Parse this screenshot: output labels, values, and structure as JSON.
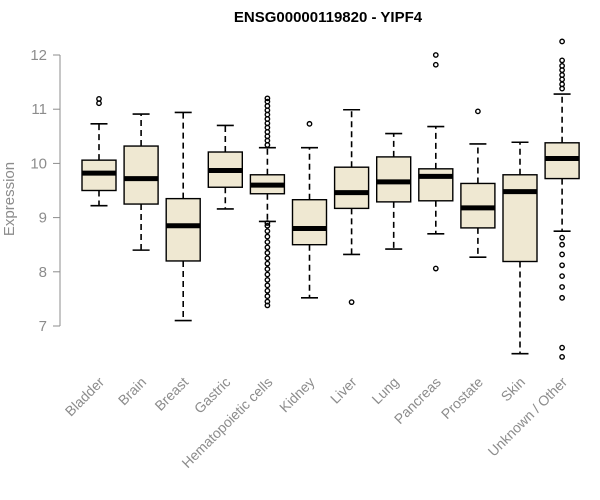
{
  "chart_data": {
    "type": "boxplot",
    "title": "ENSG00000119820 - YIPF4",
    "xlabel": "",
    "ylabel": "Expression",
    "ylim": [
      6.6,
      12.35
    ],
    "yticks": [
      7,
      8,
      9,
      10,
      11,
      12
    ],
    "grid": false,
    "colors": {
      "box_fill": "#efe8d2",
      "box_stroke": "#000000",
      "axis": "#8c8c8c",
      "text": "#8c8c8c"
    },
    "categories": [
      "Bladder",
      "Brain",
      "Breast",
      "Gastric",
      "Hematopoietic cells",
      "Kidney",
      "Liver",
      "Lung",
      "Pancreas",
      "Prostate",
      "Skin",
      "Unknown / Other"
    ],
    "boxes": [
      {
        "category": "Bladder",
        "whisker_low": 9.22,
        "q1": 9.5,
        "median": 9.82,
        "q3": 10.06,
        "whisker_high": 10.73,
        "outliers": [
          11.11,
          11.19
        ]
      },
      {
        "category": "Brain",
        "whisker_low": 8.4,
        "q1": 9.25,
        "median": 9.72,
        "q3": 10.32,
        "whisker_high": 10.91,
        "outliers": []
      },
      {
        "category": "Breast",
        "whisker_low": 7.1,
        "q1": 8.2,
        "median": 8.85,
        "q3": 9.35,
        "whisker_high": 10.94,
        "outliers": []
      },
      {
        "category": "Gastric",
        "whisker_low": 9.16,
        "q1": 9.56,
        "median": 9.87,
        "q3": 10.21,
        "whisker_high": 10.7,
        "outliers": []
      },
      {
        "category": "Hematopoietic cells",
        "whisker_low": 8.93,
        "q1": 9.44,
        "median": 9.6,
        "q3": 9.79,
        "whisker_high": 10.29,
        "outliers": [
          7.38,
          7.45,
          7.55,
          7.65,
          7.75,
          7.85,
          7.95,
          8.05,
          8.15,
          8.25,
          8.35,
          8.45,
          8.55,
          8.65,
          8.75,
          8.85,
          8.9,
          10.34,
          10.42,
          10.5,
          10.58,
          10.66,
          10.74,
          10.82,
          10.9,
          10.98,
          11.06,
          11.14,
          11.2
        ]
      },
      {
        "category": "Kidney",
        "whisker_low": 7.52,
        "q1": 8.5,
        "median": 8.8,
        "q3": 9.33,
        "whisker_high": 10.29,
        "outliers": [
          10.73
        ]
      },
      {
        "category": "Liver",
        "whisker_low": 8.32,
        "q1": 9.17,
        "median": 9.46,
        "q3": 9.93,
        "whisker_high": 10.99,
        "outliers": [
          7.44
        ]
      },
      {
        "category": "Lung",
        "whisker_low": 8.42,
        "q1": 9.29,
        "median": 9.66,
        "q3": 10.12,
        "whisker_high": 10.55,
        "outliers": []
      },
      {
        "category": "Pancreas",
        "whisker_low": 8.7,
        "q1": 9.31,
        "median": 9.76,
        "q3": 9.9,
        "whisker_high": 10.68,
        "outliers": [
          8.06,
          11.82,
          12.0
        ]
      },
      {
        "category": "Prostate",
        "whisker_low": 8.27,
        "q1": 8.81,
        "median": 9.18,
        "q3": 9.63,
        "whisker_high": 10.36,
        "outliers": [
          10.96
        ]
      },
      {
        "category": "Skin",
        "whisker_low": 6.49,
        "q1": 8.19,
        "median": 9.48,
        "q3": 9.79,
        "whisker_high": 10.39,
        "outliers": []
      },
      {
        "category": "Unknown / Other",
        "whisker_low": 8.75,
        "q1": 9.72,
        "median": 10.09,
        "q3": 10.38,
        "whisker_high": 11.28,
        "outliers": [
          6.43,
          6.6,
          7.52,
          7.72,
          7.92,
          8.12,
          8.32,
          8.5,
          8.63,
          11.38,
          11.46,
          11.55,
          11.63,
          11.72,
          11.8,
          11.9,
          12.25
        ]
      }
    ]
  }
}
